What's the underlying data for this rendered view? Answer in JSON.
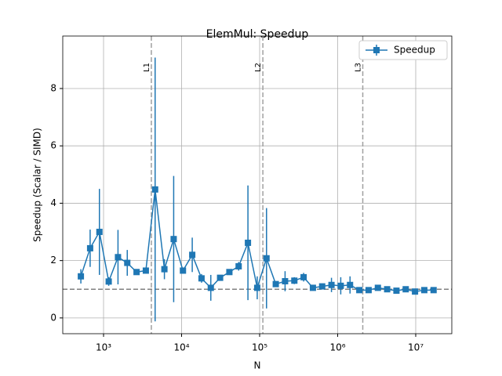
{
  "chart_data": {
    "type": "errorbar",
    "title": "ElemMul: Speedup",
    "xlabel": "N",
    "ylabel": "Speedup (Scalar / SIMD)",
    "x": [
      512,
      673,
      885,
      1164,
      1531,
      2013,
      2648,
      3482,
      4579,
      6021,
      7918,
      10410,
      13690,
      18010,
      23680,
      31140,
      40950,
      53850,
      70820,
      93130,
      122500,
      161000,
      211800,
      278500,
      366200,
      481600,
      633300,
      832800,
      1095000,
      1440000,
      1894000,
      2491000,
      3275000,
      4307000,
      5664000,
      7448000,
      9795000,
      12880000,
      16940000
    ],
    "series": [
      {
        "name": "Speedup",
        "color": "#1f77b4",
        "values": [
          1.45,
          2.43,
          3.0,
          1.27,
          2.12,
          1.92,
          1.6,
          1.65,
          4.48,
          1.7,
          2.75,
          1.65,
          2.2,
          1.38,
          1.05,
          1.4,
          1.6,
          1.8,
          2.62,
          1.05,
          2.08,
          1.18,
          1.28,
          1.3,
          1.42,
          1.05,
          1.1,
          1.15,
          1.12,
          1.15,
          0.97,
          0.97,
          1.05,
          1.0,
          0.95,
          1.0,
          0.92,
          0.97,
          0.97
        ],
        "errors": [
          0.25,
          0.65,
          1.5,
          0.15,
          0.95,
          0.45,
          0.05,
          0.05,
          4.6,
          0.35,
          2.2,
          0.1,
          0.6,
          0.15,
          0.45,
          0.08,
          0.05,
          0.15,
          2.0,
          0.4,
          1.75,
          0.08,
          0.35,
          0.12,
          0.15,
          0.08,
          0.1,
          0.25,
          0.3,
          0.3,
          0.05,
          0.05,
          0.1,
          0.05,
          0.05,
          0.05,
          0.08,
          0.05,
          0.05
        ]
      }
    ],
    "vlines": [
      {
        "value": 4096,
        "label": "L1"
      },
      {
        "value": 110000,
        "label": "L2"
      },
      {
        "value": 2097152,
        "label": "L3"
      }
    ],
    "hline": 1,
    "xscale": "log",
    "xlim": [
      300,
      29000000
    ],
    "xticks": [
      {
        "value": 1000,
        "label": "10³"
      },
      {
        "value": 10000,
        "label": "10⁴"
      },
      {
        "value": 100000,
        "label": "10⁵"
      },
      {
        "value": 1000000,
        "label": "10⁶"
      },
      {
        "value": 10000000,
        "label": "10⁷"
      }
    ],
    "ylim": [
      -0.55,
      9.83
    ],
    "yticks": [
      0,
      2,
      4,
      6,
      8
    ],
    "grid": true,
    "legend": "upper right"
  }
}
